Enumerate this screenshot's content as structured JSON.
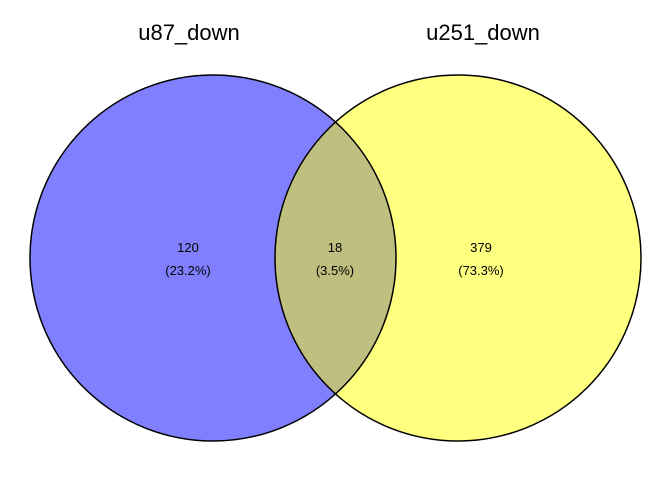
{
  "sets": [
    {
      "name": "u87_down",
      "color": "#8080ff"
    },
    {
      "name": "u251_down",
      "color": "#ffff80"
    }
  ],
  "overlap_color": "#bfbf80",
  "outline_color": "#000000",
  "regions": {
    "left_only": {
      "count": "120",
      "percent": "(23.2%)"
    },
    "intersection": {
      "count": "18",
      "percent": "(3.5%)"
    },
    "right_only": {
      "count": "379",
      "percent": "(73.3%)"
    }
  }
}
